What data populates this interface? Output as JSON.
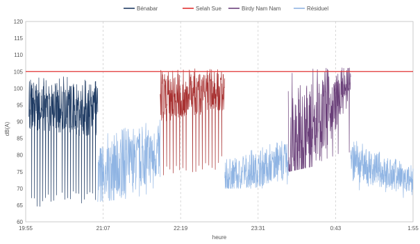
{
  "chart_data": {
    "type": "line",
    "xlabel": "heure",
    "ylabel": "dB(A)",
    "x_ticks": [
      "19:55",
      "21:07",
      "22:19",
      "23:31",
      "0:43",
      "1:55"
    ],
    "x_range_minutes": [
      0,
      360
    ],
    "ylim": [
      60,
      120
    ],
    "y_ticks": [
      60,
      65,
      70,
      75,
      80,
      85,
      90,
      95,
      100,
      105,
      110,
      115,
      120
    ],
    "grid": "vertical-dashed",
    "legend_position": "top",
    "threshold": {
      "name": "Selah Sue",
      "value": 105,
      "color": "#e03030"
    },
    "series": [
      {
        "name": "Bénabar",
        "color": "#1f3b63",
        "segments": [
          {
            "x": [
              3,
              67
            ],
            "low": [
              64,
              66
            ],
            "mid": [
              95,
              93
            ],
            "high": [
              104,
              103
            ],
            "dips": 22
          }
        ]
      },
      {
        "name": "Birdy Nam Nam",
        "color": "#6a3f79",
        "segments": [
          {
            "x": [
              244,
              302
            ],
            "low": [
              75,
              79
            ],
            "mid": [
              80,
              101
            ],
            "high": [
              105,
              107
            ],
            "dips": 10
          }
        ]
      },
      {
        "name": "Résiduel",
        "color": "#8fb4e3",
        "segments": [
          {
            "x": [
              67,
              125
            ],
            "low": [
              66,
              68
            ],
            "mid": [
              73,
              81
            ],
            "high": [
              86,
              91
            ],
            "dips": 8
          },
          {
            "x": [
              185,
              244
            ],
            "low": [
              70,
              70
            ],
            "mid": [
              73,
              78
            ],
            "high": [
              79,
              85
            ],
            "dips": 4
          },
          {
            "x": [
              302,
              360
            ],
            "low": [
              70,
              66
            ],
            "mid": [
              78,
              72
            ],
            "high": [
              85,
              77
            ],
            "dips": 6
          }
        ]
      }
    ],
    "extra_series": [
      {
        "name": "Selah Sue",
        "color": "#a83232",
        "segments": [
          {
            "x": [
              125,
              185
            ],
            "low": [
              73,
              76
            ],
            "mid": [
              97,
              99
            ],
            "high": [
              106,
              106
            ],
            "dips": 18
          }
        ]
      }
    ]
  }
}
